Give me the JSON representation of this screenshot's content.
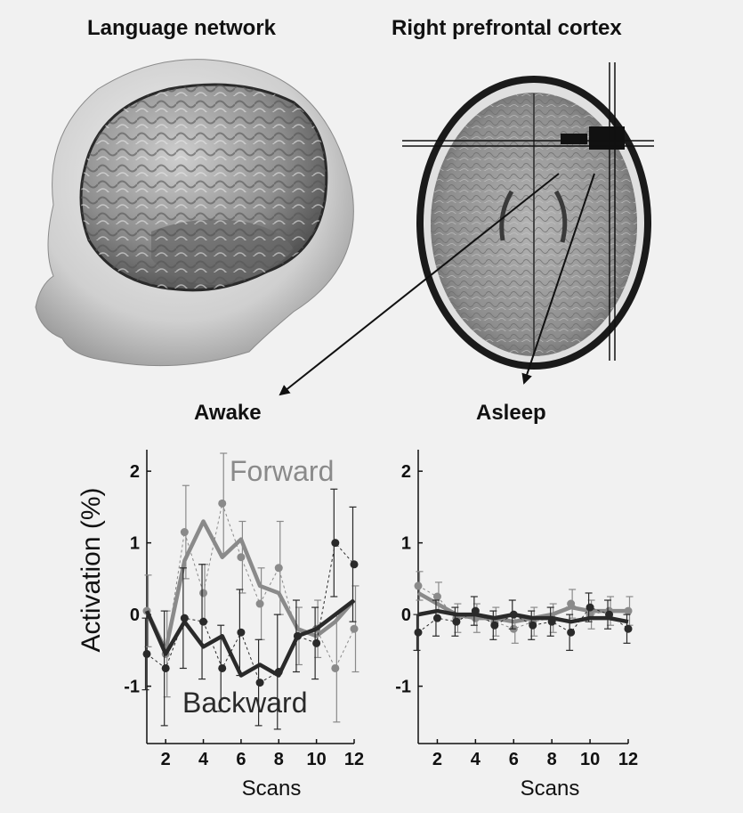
{
  "figure": {
    "title_left": "Language network",
    "title_right": "Right prefrontal cortex",
    "panel_awake": "Awake",
    "panel_asleep": "Asleep"
  },
  "chart_data": [
    {
      "type": "line",
      "panel": "Awake",
      "xlabel": "Scans",
      "ylabel": "Activation (%)",
      "x": [
        1,
        2,
        3,
        4,
        5,
        6,
        7,
        8,
        9,
        10,
        11,
        12
      ],
      "xticks": [
        2,
        4,
        6,
        8,
        10,
        12
      ],
      "yticks": [
        -1,
        0,
        1,
        2
      ],
      "xlim": [
        1,
        12
      ],
      "ylim": [
        -1.8,
        2.3
      ],
      "series": [
        {
          "name": "Forward",
          "color": "#8a8a8a",
          "values": [
            0.05,
            -0.5,
            0.75,
            1.3,
            0.8,
            1.05,
            0.4,
            0.3,
            -0.2,
            -0.3,
            -0.1,
            0.2
          ],
          "points": [
            0.05,
            -0.55,
            1.15,
            0.3,
            1.55,
            0.8,
            0.15,
            0.65,
            -0.3,
            -0.2,
            -0.75,
            -0.2
          ],
          "err": [
            0.5,
            0.6,
            0.65,
            0.4,
            0.7,
            0.5,
            0.5,
            0.65,
            0.4,
            0.4,
            0.75,
            0.6
          ]
        },
        {
          "name": "Backward",
          "color": "#2a2a2a",
          "values": [
            0.05,
            -0.55,
            -0.1,
            -0.45,
            -0.3,
            -0.85,
            -0.7,
            -0.85,
            -0.3,
            -0.2,
            0.0,
            0.2
          ],
          "points": [
            -0.55,
            -0.75,
            -0.05,
            -0.1,
            -0.75,
            -0.25,
            -0.95,
            -0.8,
            -0.3,
            -0.4,
            1.0,
            0.7
          ],
          "err": [
            0.5,
            0.8,
            0.7,
            0.8,
            0.6,
            0.6,
            0.6,
            0.8,
            0.5,
            0.5,
            0.75,
            0.8
          ]
        }
      ]
    },
    {
      "type": "line",
      "panel": "Asleep",
      "xlabel": "Scans",
      "ylabel": "",
      "x": [
        1,
        2,
        3,
        4,
        5,
        6,
        7,
        8,
        9,
        10,
        11,
        12
      ],
      "xticks": [
        2,
        4,
        6,
        8,
        10,
        12
      ],
      "yticks": [
        -1,
        0,
        1,
        2
      ],
      "xlim": [
        1,
        12
      ],
      "ylim": [
        -1.8,
        2.3
      ],
      "series": [
        {
          "name": "Forward",
          "color": "#8a8a8a",
          "values": [
            0.3,
            0.15,
            0.0,
            -0.05,
            -0.05,
            -0.1,
            -0.05,
            0.0,
            0.1,
            0.05,
            0.05,
            0.05
          ],
          "points": [
            0.4,
            0.25,
            -0.05,
            -0.05,
            -0.1,
            -0.2,
            -0.1,
            -0.05,
            0.15,
            0.0,
            0.05,
            0.05
          ],
          "err": [
            0.2,
            0.2,
            0.2,
            0.2,
            0.2,
            0.2,
            0.2,
            0.2,
            0.2,
            0.2,
            0.2,
            0.2
          ]
        },
        {
          "name": "Backward",
          "color": "#2a2a2a",
          "values": [
            0.0,
            0.05,
            0.0,
            0.0,
            -0.05,
            0.0,
            -0.05,
            -0.05,
            -0.1,
            -0.05,
            -0.05,
            -0.1
          ],
          "points": [
            -0.25,
            -0.05,
            -0.1,
            0.05,
            -0.15,
            0.0,
            -0.15,
            -0.1,
            -0.25,
            0.1,
            0.0,
            -0.2
          ],
          "err": [
            0.25,
            0.25,
            0.2,
            0.2,
            0.2,
            0.2,
            0.2,
            0.2,
            0.25,
            0.2,
            0.2,
            0.2
          ]
        }
      ]
    }
  ]
}
